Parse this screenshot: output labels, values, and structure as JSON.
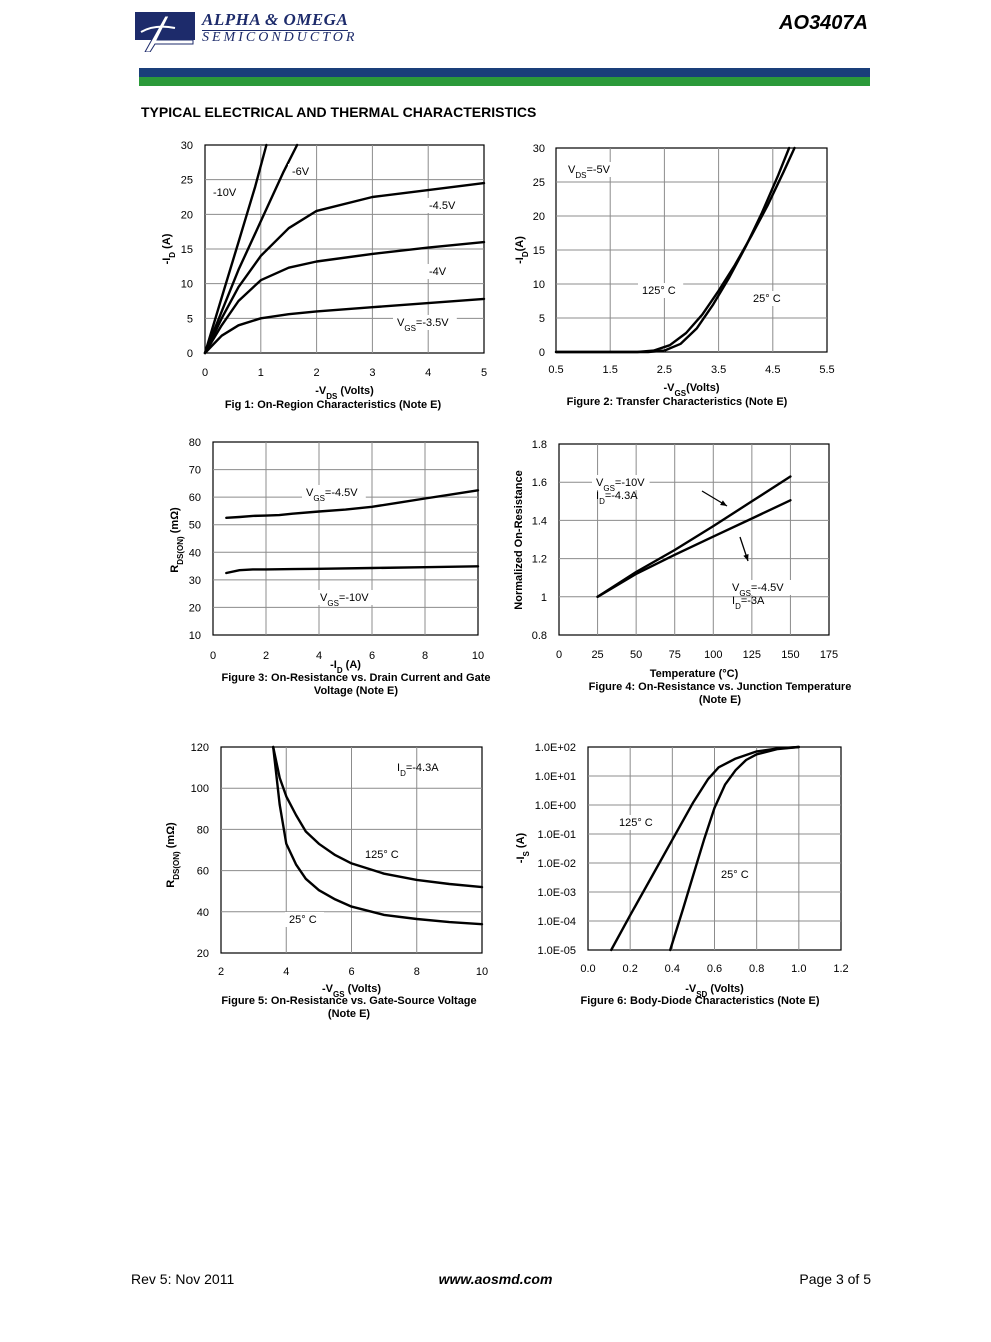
{
  "header": {
    "logo_name": "ALPHA & OMEGA",
    "logo_sub": "SEMICONDUCTOR",
    "part_number": "AO3407A",
    "band_colors": [
      "#1a3f7a",
      "#2b9a3a"
    ]
  },
  "section_title": "TYPICAL ELECTRICAL AND THERMAL CHARACTERISTICS",
  "footer": {
    "revision": "Rev 5: Nov 2011",
    "url": "www.aosmd.com",
    "page": "Page 3 of 5"
  },
  "chart_data": [
    {
      "type": "line",
      "title": "Fig 1: On-Region Characteristics (Note E)",
      "xlabel": "-VDS (Volts)",
      "ylabel": "-ID (A)",
      "xlim": [
        0,
        5
      ],
      "ylim": [
        0,
        30
      ],
      "xticks": [
        "0",
        "1",
        "2",
        "3",
        "4",
        "5"
      ],
      "yticks": [
        "0",
        "5",
        "10",
        "15",
        "20",
        "25",
        "30"
      ],
      "grid": true,
      "series": [
        {
          "name": "-10V",
          "x": [
            0,
            0.3,
            0.6,
            0.9,
            1.1
          ],
          "y": [
            0,
            8,
            16,
            24,
            30
          ]
        },
        {
          "name": "-6V",
          "x": [
            0,
            0.3,
            0.6,
            1.0,
            1.4,
            1.65
          ],
          "y": [
            0,
            6,
            12,
            19,
            26,
            30
          ]
        },
        {
          "name": "-4.5V",
          "x": [
            0,
            0.3,
            0.6,
            1.0,
            1.5,
            2.0,
            3.0,
            4.0,
            5.0
          ],
          "y": [
            0,
            5,
            9.5,
            14,
            18,
            20.5,
            22.5,
            23.5,
            24.5
          ]
        },
        {
          "name": "-4V",
          "x": [
            0,
            0.3,
            0.6,
            1.0,
            1.5,
            2.0,
            3.0,
            4.0,
            5.0
          ],
          "y": [
            0,
            4,
            7.5,
            10.5,
            12.3,
            13.2,
            14.3,
            15.2,
            16
          ]
        },
        {
          "name": "VGS=-3.5V",
          "x": [
            0,
            0.3,
            0.6,
            1.0,
            1.5,
            2.0,
            3.0,
            4.0,
            5.0
          ],
          "y": [
            0,
            2.5,
            4,
            5,
            5.6,
            6,
            6.6,
            7.2,
            7.8
          ]
        }
      ],
      "annotations": [
        "-10V",
        "-6V",
        "-4.5V",
        "-4V",
        "VGS=-3.5V"
      ]
    },
    {
      "type": "line",
      "title": "Figure 2: Transfer Characteristics (Note E)",
      "xlabel": "-VGS(Volts)",
      "ylabel": "-ID(A)",
      "xlim": [
        0.5,
        5.5
      ],
      "ylim": [
        0,
        30
      ],
      "xticks": [
        "0.5",
        "1.5",
        "2.5",
        "3.5",
        "4.5",
        "5.5"
      ],
      "yticks": [
        "0",
        "5",
        "10",
        "15",
        "20",
        "25",
        "30"
      ],
      "grid": true,
      "series": [
        {
          "name": "125° C",
          "x": [
            0.5,
            2.0,
            2.3,
            2.6,
            2.9,
            3.2,
            3.5,
            3.8,
            4.1,
            4.4,
            4.7,
            4.9
          ],
          "y": [
            0,
            0,
            0.2,
            1,
            2.8,
            5.5,
            9,
            12.8,
            17,
            21.5,
            26.5,
            30
          ]
        },
        {
          "name": "25° C",
          "x": [
            0.5,
            2.2,
            2.5,
            2.8,
            3.1,
            3.4,
            3.7,
            4.0,
            4.3,
            4.6,
            4.8
          ],
          "y": [
            0,
            0,
            0.2,
            1.2,
            3.5,
            7,
            11,
            15.5,
            20.5,
            26,
            30
          ]
        }
      ],
      "annotations": [
        "VDS=-5V",
        "125° C",
        "25° C"
      ]
    },
    {
      "type": "line",
      "title": "Figure 3: On-Resistance vs. Drain Current and Gate Voltage (Note E)",
      "xlabel": "-ID (A)",
      "ylabel": "RDS(ON) (mΩ)",
      "xlim": [
        0,
        10
      ],
      "ylim": [
        10,
        80
      ],
      "xticks": [
        "0",
        "2",
        "4",
        "6",
        "8",
        "10"
      ],
      "yticks": [
        "10",
        "20",
        "30",
        "40",
        "50",
        "60",
        "70",
        "80"
      ],
      "grid": true,
      "series": [
        {
          "name": "VGS=-4.5V",
          "x": [
            0.5,
            1,
            1.5,
            2,
            2.5,
            3,
            4,
            5,
            6,
            7,
            8,
            9,
            10
          ],
          "y": [
            52.5,
            52.8,
            53.2,
            53.3,
            53.5,
            54,
            54.8,
            55.5,
            56.5,
            58,
            59.5,
            61,
            62.5
          ]
        },
        {
          "name": "VGS=-10V",
          "x": [
            0.5,
            1,
            1.5,
            2,
            3,
            4,
            6,
            8,
            10
          ],
          "y": [
            32.5,
            33.5,
            33.8,
            33.8,
            33.9,
            34,
            34.3,
            34.6,
            34.9
          ]
        }
      ],
      "annotations": [
        "VGS=-4.5V",
        "VGS=-10V"
      ]
    },
    {
      "type": "line",
      "title": "Figure 4: On-Resistance vs. Junction Temperature (Note E)",
      "xlabel": "Temperature (°C)",
      "ylabel": "Normalized On-Resistance",
      "xlim": [
        0,
        175
      ],
      "ylim": [
        0.8,
        1.8
      ],
      "xticks": [
        "0",
        "25",
        "50",
        "75",
        "100",
        "125",
        "150",
        "175"
      ],
      "yticks": [
        "0.8",
        "1",
        "1.2",
        "1.4",
        "1.6",
        "1.8"
      ],
      "grid": true,
      "series": [
        {
          "name": "VGS=-10V ID=-4.3A",
          "x": [
            25,
            50,
            75,
            100,
            125,
            150
          ],
          "y": [
            1.0,
            1.13,
            1.245,
            1.37,
            1.5,
            1.63
          ]
        },
        {
          "name": "VGS=-4.5V ID=-3A",
          "x": [
            25,
            50,
            75,
            100,
            125,
            150
          ],
          "y": [
            1.0,
            1.12,
            1.22,
            1.315,
            1.41,
            1.505
          ]
        }
      ],
      "annotations": [
        "VGS=-10V",
        "ID=-4.3A",
        "VGS=-4.5V",
        "ID=-3A"
      ]
    },
    {
      "type": "line",
      "title": "Figure 5: On-Resistance vs. Gate-Source Voltage (Note E)",
      "xlabel": "-VGS (Volts)",
      "ylabel": "RDS(ON) (mΩ)",
      "xlim": [
        2,
        10
      ],
      "ylim": [
        20,
        120
      ],
      "xticks": [
        "2",
        "4",
        "6",
        "8",
        "10"
      ],
      "yticks": [
        "20",
        "40",
        "60",
        "80",
        "100",
        "120"
      ],
      "grid": true,
      "series": [
        {
          "name": "125° C",
          "x": [
            3.6,
            3.8,
            4.0,
            4.3,
            4.6,
            5.0,
            5.5,
            6.0,
            7.0,
            8.0,
            9.0,
            10.0
          ],
          "y": [
            120,
            105,
            96,
            87,
            79,
            73,
            67.5,
            63.5,
            58.5,
            55.5,
            53.5,
            52
          ]
        },
        {
          "name": "25° C",
          "x": [
            3.6,
            3.8,
            4.0,
            4.3,
            4.6,
            5.0,
            5.5,
            6.0,
            7.0,
            8.0,
            9.0,
            10.0
          ],
          "y": [
            120,
            92,
            73,
            63,
            56,
            50.5,
            46,
            42.5,
            38.5,
            36.5,
            35,
            34
          ]
        }
      ],
      "annotations": [
        "ID=-4.3A",
        "125° C",
        "25° C"
      ]
    },
    {
      "type": "line",
      "title": "Figure 6: Body-Diode Characteristics (Note E)",
      "xlabel": "-VSD (Volts)",
      "ylabel": "-IS (A)",
      "xlim": [
        0,
        1.2
      ],
      "ylim": [
        -5,
        2
      ],
      "yscale": "log",
      "xticks": [
        "0.0",
        "0.2",
        "0.4",
        "0.6",
        "0.8",
        "1.0",
        "1.2"
      ],
      "yticks": [
        "1.0E-05",
        "1.0E-04",
        "1.0E-03",
        "1.0E-02",
        "1.0E-01",
        "1.0E+00",
        "1.0E+01",
        "1.0E+02"
      ],
      "grid": true,
      "series": [
        {
          "name": "125° C",
          "x": [
            0.11,
            0.2,
            0.3,
            0.4,
            0.5,
            0.57,
            0.62,
            0.7,
            0.8,
            0.9,
            1.0
          ],
          "y": [
            -5,
            -3.8,
            -2.5,
            -1.2,
            0.1,
            0.9,
            1.3,
            1.6,
            1.85,
            1.95,
            2
          ]
        },
        {
          "name": "25° C",
          "x": [
            0.39,
            0.45,
            0.5,
            0.55,
            0.6,
            0.65,
            0.7,
            0.75,
            0.8,
            0.9,
            1.0
          ],
          "y": [
            -5,
            -3.6,
            -2.4,
            -1.2,
            -0.1,
            0.7,
            1.2,
            1.55,
            1.75,
            1.93,
            2
          ]
        }
      ],
      "annotations": [
        "125° C",
        "25° C"
      ]
    }
  ]
}
